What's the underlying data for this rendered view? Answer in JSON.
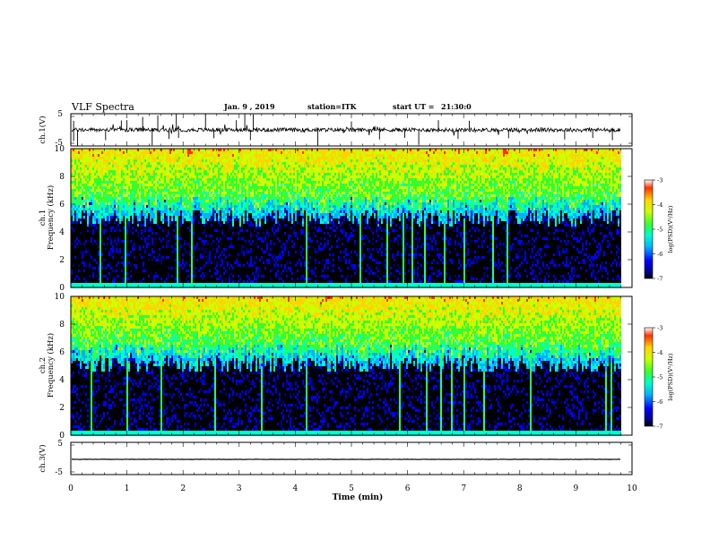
{
  "header": {
    "title": "VLF Spectra",
    "date": "Jan. 9 , 2019",
    "station": "station=ITK",
    "start_label": "start  UT =",
    "start_time": "21:30:0"
  },
  "chart_data": [
    {
      "type": "line",
      "name": "ch1-waveform",
      "ylabel": "ch.1(V)",
      "ylim": [
        -5,
        5
      ],
      "yticks": [
        "5",
        "-5"
      ],
      "xlim": [
        0,
        10
      ],
      "baseline": 0,
      "noise_amplitude": 0.6,
      "spikes": [
        {
          "x": 0.05,
          "y": 2.8
        },
        {
          "x": 0.05,
          "y": -3.5
        },
        {
          "x": 0.12,
          "y": -4.9
        },
        {
          "x": 0.62,
          "y": -3.2
        },
        {
          "x": 0.9,
          "y": 2.9
        },
        {
          "x": 1.0,
          "y": 3.0
        },
        {
          "x": 1.28,
          "y": 4.0
        },
        {
          "x": 1.45,
          "y": -4.8
        },
        {
          "x": 1.55,
          "y": 4.5
        },
        {
          "x": 1.75,
          "y": -2.8
        },
        {
          "x": 1.88,
          "y": 5.0
        },
        {
          "x": 1.92,
          "y": -2.5
        },
        {
          "x": 2.4,
          "y": 5.0
        },
        {
          "x": 2.55,
          "y": -2.6
        },
        {
          "x": 2.95,
          "y": 3.0
        },
        {
          "x": 3.1,
          "y": 5.0
        },
        {
          "x": 3.2,
          "y": -3.2
        },
        {
          "x": 3.25,
          "y": 4.8
        },
        {
          "x": 4.4,
          "y": -4.8
        },
        {
          "x": 5.0,
          "y": 2.6
        },
        {
          "x": 5.5,
          "y": -3.0
        },
        {
          "x": 5.95,
          "y": -2.5
        },
        {
          "x": 6.2,
          "y": -4.5
        },
        {
          "x": 6.55,
          "y": 3.0
        },
        {
          "x": 6.9,
          "y": -2.8
        },
        {
          "x": 7.1,
          "y": 2.8
        },
        {
          "x": 7.8,
          "y": -2.6
        },
        {
          "x": 8.8,
          "y": -3.0
        },
        {
          "x": 9.3,
          "y": -2.5
        },
        {
          "x": 9.65,
          "y": -3.2
        }
      ]
    },
    {
      "type": "heatmap",
      "name": "ch1-spectrogram",
      "ylabel_lines": [
        "ch.1",
        "Frequency (kHz)"
      ],
      "xlim": [
        0,
        10
      ],
      "data_end": 9.8,
      "ylim": [
        0,
        10
      ],
      "yticks": [
        "0",
        "2",
        "4",
        "6",
        "8",
        "10"
      ],
      "colorbar": {
        "label": "log(PSD)(V²/Hz)",
        "range": [
          -7,
          -3
        ],
        "ticks": [
          "-3",
          "-4",
          "-5",
          "-6",
          "-7"
        ]
      },
      "cutoff_khz": 5.4,
      "color_scale": [
        "#000000",
        "#00007f",
        "#0000ff",
        "#00b2ff",
        "#00ffcc",
        "#33ff33",
        "#ccff00",
        "#ffd400",
        "#ff3300"
      ]
    },
    {
      "type": "heatmap",
      "name": "ch2-spectrogram",
      "ylabel_lines": [
        "ch.2",
        "Frequency (kHz)"
      ],
      "xlim": [
        0,
        10
      ],
      "data_end": 9.8,
      "ylim": [
        0,
        10
      ],
      "yticks": [
        "0",
        "2",
        "4",
        "6",
        "8",
        "10"
      ],
      "colorbar": {
        "label": "log(PSD)(V²/Hz)",
        "range": [
          -7,
          -3
        ],
        "ticks": [
          "-3",
          "-4",
          "-5",
          "-6",
          "-7"
        ]
      },
      "cutoff_khz": 5.5,
      "color_scale": [
        "#000000",
        "#00007f",
        "#0000ff",
        "#00b2ff",
        "#00ffcc",
        "#33ff33",
        "#ccff00",
        "#ffd400",
        "#ff3300"
      ]
    },
    {
      "type": "line",
      "name": "ch3-waveform",
      "ylabel": "ch.3(V)",
      "ylim": [
        -5,
        5
      ],
      "yticks": [
        "5",
        "-5"
      ],
      "xlim": [
        0,
        10
      ],
      "baseline": 0,
      "noise_amplitude": 0.05,
      "xlabel": "Time (min)",
      "xticks": [
        "0",
        "1",
        "2",
        "3",
        "4",
        "5",
        "6",
        "7",
        "8",
        "9",
        "10"
      ]
    }
  ]
}
